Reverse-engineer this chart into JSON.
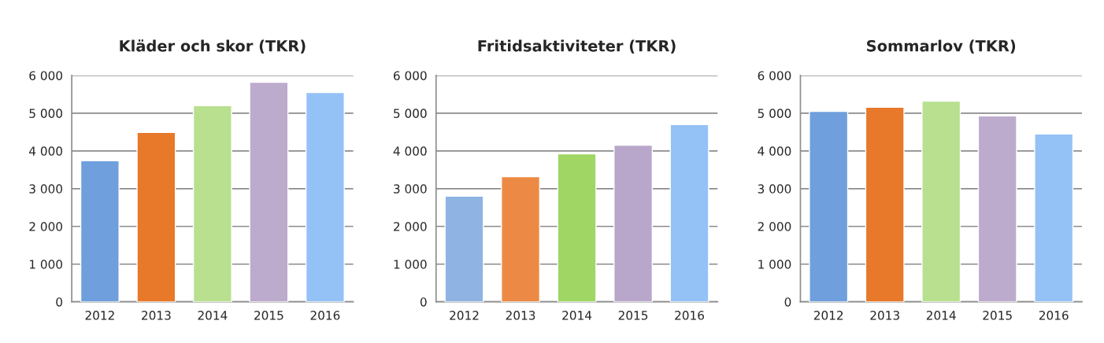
{
  "chart_data": [
    {
      "type": "bar",
      "title": "Kläder och skor (TKR)",
      "categories": [
        "2012",
        "2013",
        "2014",
        "2015",
        "2016"
      ],
      "values": [
        3740,
        4490,
        5200,
        5820,
        5550
      ],
      "colors": [
        "#6f9fdc",
        "#e8782a",
        "#b8e08f",
        "#bcabcc",
        "#94c2f6"
      ],
      "ylim": [
        0,
        6000
      ],
      "yticks": [
        {
          "value": 0,
          "label": "0"
        },
        {
          "value": 1000,
          "label": "1 000"
        },
        {
          "value": 2000,
          "label": "2 000"
        },
        {
          "value": 3000,
          "label": "3 000"
        },
        {
          "value": 4000,
          "label": "4 000"
        },
        {
          "value": 5000,
          "label": "5 000"
        },
        {
          "value": 6000,
          "label": "6 000"
        }
      ],
      "grid": "y",
      "legend": false
    },
    {
      "type": "bar",
      "title": "Fritidsaktiviteter (TKR)",
      "categories": [
        "2012",
        "2013",
        "2014",
        "2015",
        "2016"
      ],
      "values": [
        2800,
        3320,
        3920,
        4150,
        4700
      ],
      "colors": [
        "#8fb4e3",
        "#ec8a45",
        "#9fd664",
        "#b8a7ca",
        "#94c2f6"
      ],
      "ylim": [
        0,
        6000
      ],
      "yticks": [
        {
          "value": 0,
          "label": "0"
        },
        {
          "value": 1000,
          "label": "1 000"
        },
        {
          "value": 2000,
          "label": "2 000"
        },
        {
          "value": 3000,
          "label": "3 000"
        },
        {
          "value": 4000,
          "label": "4 000"
        },
        {
          "value": 5000,
          "label": "5 000"
        },
        {
          "value": 6000,
          "label": "6 000"
        }
      ],
      "grid": "y",
      "legend": false
    },
    {
      "type": "bar",
      "title": "Sommarlov (TKR)",
      "categories": [
        "2012",
        "2013",
        "2014",
        "2015",
        "2016"
      ],
      "values": [
        5050,
        5160,
        5320,
        4930,
        4450
      ],
      "colors": [
        "#6f9fdc",
        "#e8782a",
        "#b8e08f",
        "#bcabcc",
        "#94c2f6"
      ],
      "ylim": [
        0,
        6000
      ],
      "yticks": [
        {
          "value": 0,
          "label": "0"
        },
        {
          "value": 1000,
          "label": "1 000"
        },
        {
          "value": 2000,
          "label": "2 000"
        },
        {
          "value": 3000,
          "label": "3 000"
        },
        {
          "value": 4000,
          "label": "4 000"
        },
        {
          "value": 5000,
          "label": "5 000"
        },
        {
          "value": 6000,
          "label": "6 000"
        }
      ],
      "grid": "y",
      "legend": false
    }
  ]
}
